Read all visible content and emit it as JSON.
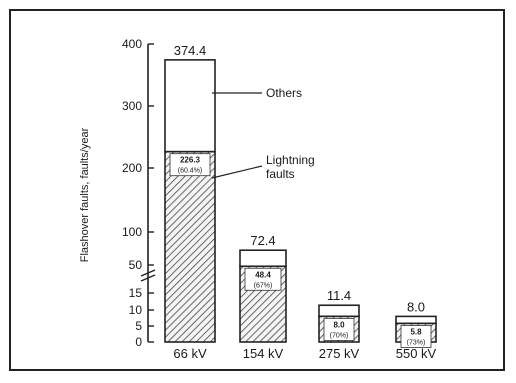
{
  "chart_data": {
    "type": "bar",
    "stacked": true,
    "ylabel": "Flashover faults, faults/year",
    "y_scale": "broken",
    "y_ticks": [
      "0",
      "5",
      "10",
      "15",
      "50",
      "100",
      "200",
      "300",
      "400"
    ],
    "categories": [
      "66 kV",
      "154 kV",
      "275 kV",
      "550 kV"
    ],
    "totals": [
      374.4,
      72.4,
      11.4,
      8.0
    ],
    "total_labels": [
      "374.4",
      "72.4",
      "11.4",
      "8.0"
    ],
    "series": [
      {
        "name": "Lightning faults",
        "values": [
          226.3,
          48.4,
          8.0,
          5.8
        ],
        "value_labels": [
          "226.3",
          "48.4",
          "8.0",
          "5.8"
        ],
        "percent_labels": [
          "(60.4%)",
          "(67%)",
          "(70%)",
          "(73%)"
        ],
        "pattern": "hatched"
      },
      {
        "name": "Others",
        "values": [
          148.1,
          24.0,
          3.4,
          2.2
        ]
      }
    ],
    "annotations": [
      "Others",
      "Lightning faults"
    ],
    "grid": false,
    "legend": "annotation-arrows"
  }
}
